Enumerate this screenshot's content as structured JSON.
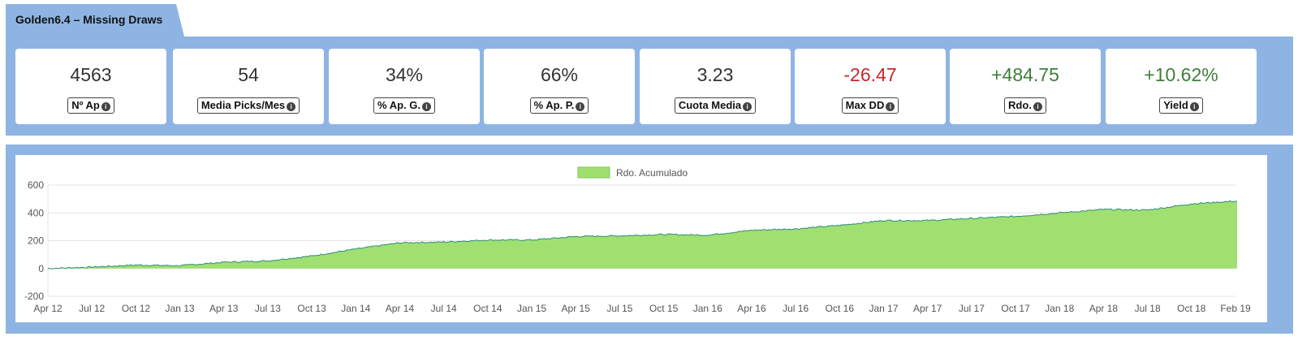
{
  "header": {
    "title": "Golden6.4 – Missing Draws"
  },
  "stats": [
    {
      "value": "4563",
      "label": "Nº Ap",
      "tone": "neutral"
    },
    {
      "value": "54",
      "label": "Media Picks/Mes",
      "tone": "neutral"
    },
    {
      "value": "34%",
      "label": "% Ap. G.",
      "tone": "neutral"
    },
    {
      "value": "66%",
      "label": "% Ap. P.",
      "tone": "neutral"
    },
    {
      "value": "3.23",
      "label": "Cuota Media",
      "tone": "neutral"
    },
    {
      "value": "-26.47",
      "label": "Max DD",
      "tone": "negative"
    },
    {
      "value": "+484.75",
      "label": "Rdo.",
      "tone": "positive"
    },
    {
      "value": "+10.62%",
      "label": "Yield",
      "tone": "positive"
    }
  ],
  "icons": {
    "info": "info-icon"
  },
  "colors": {
    "panel": "#8eb4e3",
    "area_fill": "#a0e070",
    "area_line": "#2e8b7a",
    "negative": "#c9262e",
    "positive": "#3f7e3a"
  },
  "chart_data": {
    "type": "area",
    "legend": {
      "label": "Rdo. Acumulado",
      "position": "top-center"
    },
    "ylim": [
      -200,
      600
    ],
    "yticks": [
      -200,
      0,
      200,
      400,
      600
    ],
    "grid": true,
    "x_ticks": [
      "Apr 12",
      "Jul 12",
      "Oct 12",
      "Jan 13",
      "Apr 13",
      "Jul 13",
      "Oct 13",
      "Jan 14",
      "Apr 14",
      "Jul 14",
      "Oct 14",
      "Jan 15",
      "Apr 15",
      "Jul 15",
      "Oct 15",
      "Jan 16",
      "Apr 16",
      "Jul 16",
      "Oct 16",
      "Jan 17",
      "Apr 17",
      "Jul 17",
      "Oct 17",
      "Jan 18",
      "Apr 18",
      "Jul 18",
      "Oct 18",
      "Feb 19"
    ],
    "series": [
      {
        "name": "Rdo. Acumulado",
        "x": [
          "Apr 12",
          "Jul 12",
          "Oct 12",
          "Jan 13",
          "Apr 13",
          "Jul 13",
          "Oct 13",
          "Jan 14",
          "Apr 14",
          "Jul 14",
          "Oct 14",
          "Jan 15",
          "Apr 15",
          "Jul 15",
          "Oct 15",
          "Jan 16",
          "Apr 16",
          "Jul 16",
          "Oct 16",
          "Jan 17",
          "Apr 17",
          "Jul 17",
          "Oct 17",
          "Jan 18",
          "Apr 18",
          "Jul 18",
          "Oct 18",
          "Feb 19"
        ],
        "values": [
          0,
          10,
          25,
          20,
          45,
          55,
          90,
          140,
          185,
          190,
          205,
          205,
          230,
          235,
          245,
          240,
          275,
          285,
          310,
          345,
          345,
          360,
          375,
          400,
          425,
          420,
          465,
          485
        ]
      }
    ]
  }
}
